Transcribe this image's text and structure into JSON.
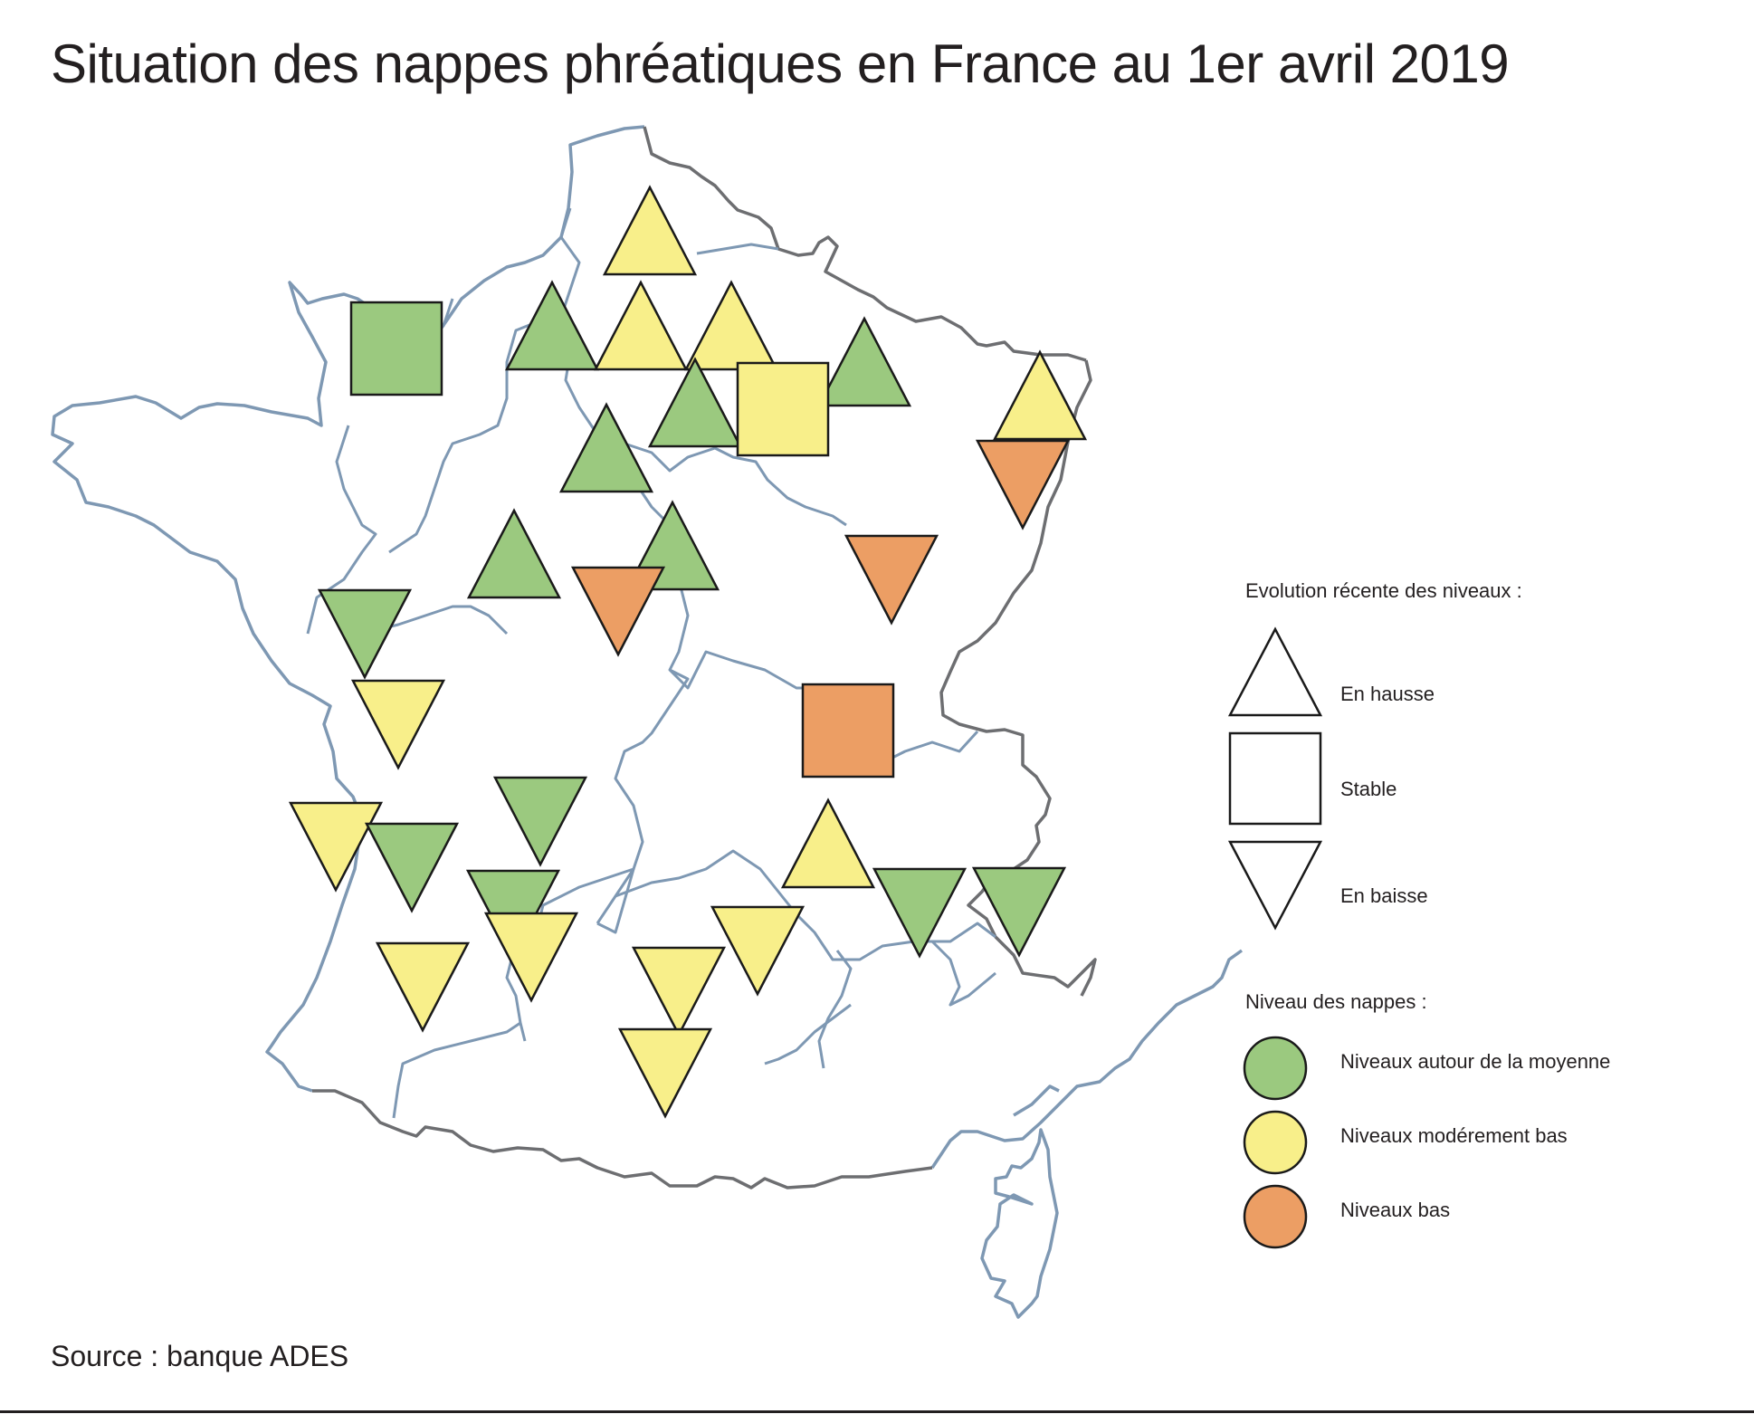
{
  "title": "Situation des nappes phréatiques en France au 1er avril 2019",
  "source": "Source : banque ADES",
  "colors": {
    "moyenne": "#9bc97f",
    "moderement_bas": "#f8ef8a",
    "bas": "#ec9e64",
    "coastline": "#7e98b3",
    "land_border": "#6d6e71",
    "marker_stroke": "#1a1a1a"
  },
  "legend": {
    "evolution_title": "Evolution récente des niveaux :",
    "evolution_items": [
      {
        "shape": "triangle-up",
        "label": "En hausse"
      },
      {
        "shape": "square",
        "label": "Stable"
      },
      {
        "shape": "triangle-down",
        "label": "En baisse"
      }
    ],
    "level_title": "Niveau des nappes :",
    "level_items": [
      {
        "level": "moyenne",
        "label": "Niveaux autour de la moyenne"
      },
      {
        "level": "moderement_bas",
        "label": "Niveaux modérement bas"
      },
      {
        "level": "bas",
        "label": "Niveaux bas"
      }
    ]
  },
  "markers": [
    {
      "trend": "hausse",
      "level": "moderement_bas"
    },
    {
      "trend": "stable",
      "level": "moyenne"
    },
    {
      "trend": "hausse",
      "level": "moyenne"
    },
    {
      "trend": "hausse",
      "level": "moderement_bas"
    },
    {
      "trend": "hausse",
      "level": "moderement_bas"
    },
    {
      "trend": "hausse",
      "level": "moyenne"
    },
    {
      "trend": "hausse",
      "level": "moyenne"
    },
    {
      "trend": "stable",
      "level": "moderement_bas"
    },
    {
      "trend": "hausse",
      "level": "moderement_bas"
    },
    {
      "trend": "baisse",
      "level": "bas"
    },
    {
      "trend": "hausse",
      "level": "moyenne"
    },
    {
      "trend": "hausse",
      "level": "moyenne"
    },
    {
      "trend": "hausse",
      "level": "moyenne"
    },
    {
      "trend": "baisse",
      "level": "bas"
    },
    {
      "trend": "baisse",
      "level": "bas"
    },
    {
      "trend": "baisse",
      "level": "moyenne"
    },
    {
      "trend": "stable",
      "level": "bas"
    },
    {
      "trend": "baisse",
      "level": "moderement_bas"
    },
    {
      "trend": "baisse",
      "level": "moyenne"
    },
    {
      "trend": "hausse",
      "level": "moderement_bas"
    },
    {
      "trend": "baisse",
      "level": "moderement_bas"
    },
    {
      "trend": "baisse",
      "level": "moyenne"
    },
    {
      "trend": "baisse",
      "level": "moyenne"
    },
    {
      "trend": "baisse",
      "level": "moyenne"
    },
    {
      "trend": "baisse",
      "level": "moyenne"
    },
    {
      "trend": "baisse",
      "level": "moderement_bas"
    },
    {
      "trend": "baisse",
      "level": "moderement_bas"
    },
    {
      "trend": "baisse",
      "level": "moderement_bas"
    },
    {
      "trend": "baisse",
      "level": "moderement_bas"
    },
    {
      "trend": "baisse",
      "level": "moderement_bas"
    }
  ]
}
